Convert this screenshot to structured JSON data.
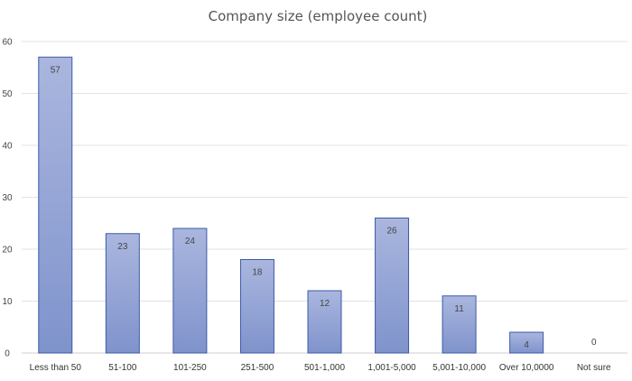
{
  "chart_data": {
    "type": "bar",
    "title": "Company size (employee count)",
    "xlabel": "",
    "ylabel": "",
    "categories": [
      "Less than 50",
      "51-100",
      "101-250",
      "251-500",
      "501-1,000",
      "1,001-5,000",
      "5,001-10,000",
      "Over 10,0000",
      "Not sure"
    ],
    "values": [
      57,
      23,
      24,
      18,
      12,
      26,
      11,
      4,
      0
    ],
    "data_labels": [
      "57",
      "23",
      "24",
      "18",
      "12",
      "26",
      "11",
      "4",
      "0"
    ],
    "ylim": [
      0,
      60
    ],
    "yticks": [
      0,
      10,
      20,
      30,
      40,
      50,
      60
    ],
    "grid": true,
    "legend": "none",
    "colors": {
      "bar_top": "#aab6de",
      "bar_bottom": "#7f93cc",
      "bar_border": "#3d5aa8"
    }
  }
}
